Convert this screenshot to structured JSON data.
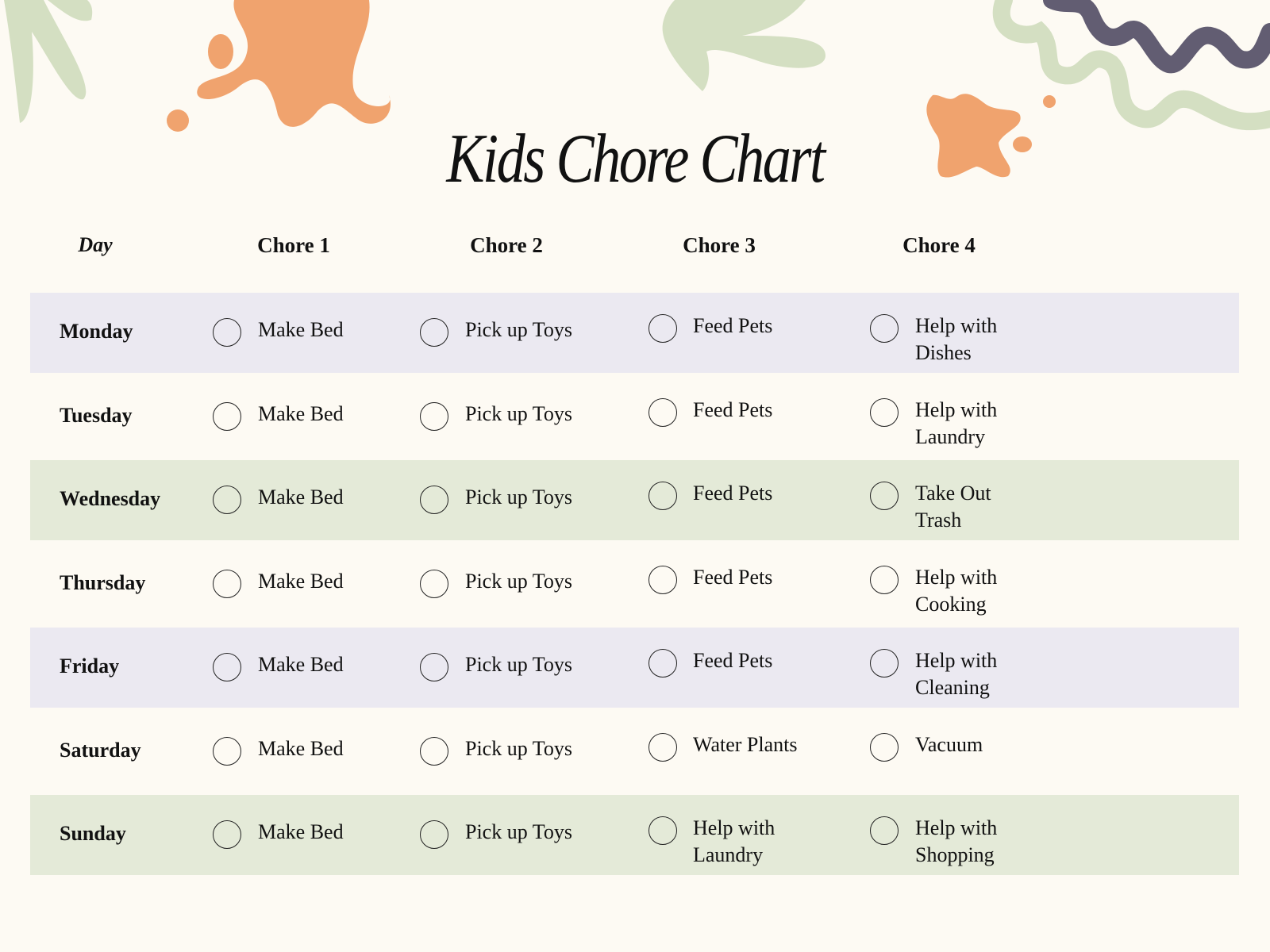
{
  "title": "Kids Chore Chart",
  "colors": {
    "background": "#fdfaf3",
    "lavender_band": "#ebe9f1",
    "green_band": "#e4ead8",
    "orange": "#f0a36e",
    "sage": "#d4dfc2",
    "purple": "#625d72"
  },
  "headers": {
    "day": "Day",
    "chore1": "Chore 1",
    "chore2": "Chore 2",
    "chore3": "Chore 3",
    "chore4": "Chore 4"
  },
  "rows": [
    {
      "day": "Monday",
      "band": "lavender",
      "chores": [
        "Make Bed",
        "Pick up Toys",
        "Feed Pets",
        "Help with Dishes"
      ]
    },
    {
      "day": "Tuesday",
      "band": "none",
      "chores": [
        "Make Bed",
        "Pick up Toys",
        "Feed Pets",
        "Help with Laundry"
      ]
    },
    {
      "day": "Wednesday",
      "band": "green",
      "chores": [
        "Make Bed",
        "Pick up Toys",
        "Feed Pets",
        "Take Out Trash"
      ]
    },
    {
      "day": "Thursday",
      "band": "none",
      "chores": [
        "Make Bed",
        "Pick up Toys",
        "Feed Pets",
        "Help with Cooking"
      ]
    },
    {
      "day": "Friday",
      "band": "lavender",
      "chores": [
        "Make Bed",
        "Pick up Toys",
        "Feed Pets",
        "Help with Cleaning"
      ]
    },
    {
      "day": "Saturday",
      "band": "none",
      "chores": [
        "Make Bed",
        "Pick up Toys",
        "Water Plants",
        "Vacuum"
      ]
    },
    {
      "day": "Sunday",
      "band": "green",
      "chores": [
        "Make Bed",
        "Pick up Toys",
        "Help with Laundry",
        "Help with Shopping"
      ]
    }
  ]
}
